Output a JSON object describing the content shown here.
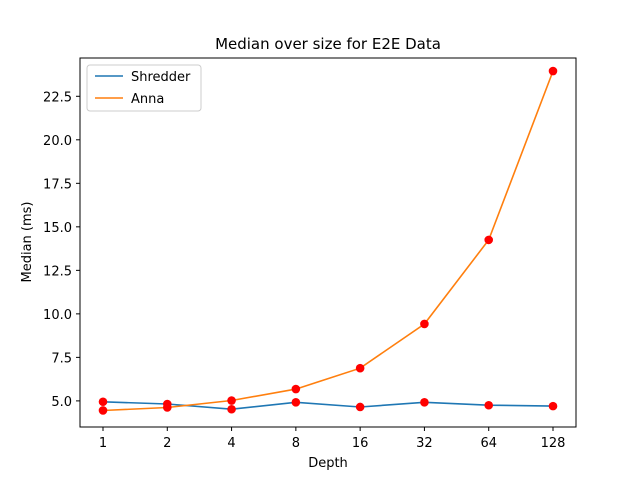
{
  "chart_data": {
    "type": "line",
    "title": "Median over size for E2E Data",
    "xlabel": "Depth",
    "ylabel": "Median (ms)",
    "categories": [
      "1",
      "2",
      "4",
      "8",
      "16",
      "32",
      "64",
      "128"
    ],
    "x": [
      1,
      2,
      4,
      8,
      16,
      32,
      64,
      128
    ],
    "x_scale": "log2",
    "ylim": [
      3.5,
      24.7
    ],
    "yticks": [
      5.0,
      7.5,
      10.0,
      12.5,
      15.0,
      17.5,
      20.0,
      22.5
    ],
    "ytick_labels": [
      "5.0",
      "7.5",
      "10.0",
      "12.5",
      "15.0",
      "17.5",
      "20.0",
      "22.5"
    ],
    "legend_position": "top-left",
    "grid": false,
    "marker_color": "#ff0000",
    "series": [
      {
        "name": "Shredder",
        "color": "#1f77b4",
        "values": [
          4.95,
          4.82,
          4.52,
          4.92,
          4.65,
          4.92,
          4.75,
          4.7
        ]
      },
      {
        "name": "Anna",
        "color": "#ff7f0e",
        "values": [
          4.45,
          4.62,
          5.02,
          5.68,
          6.88,
          9.42,
          14.25,
          23.95
        ]
      }
    ]
  }
}
